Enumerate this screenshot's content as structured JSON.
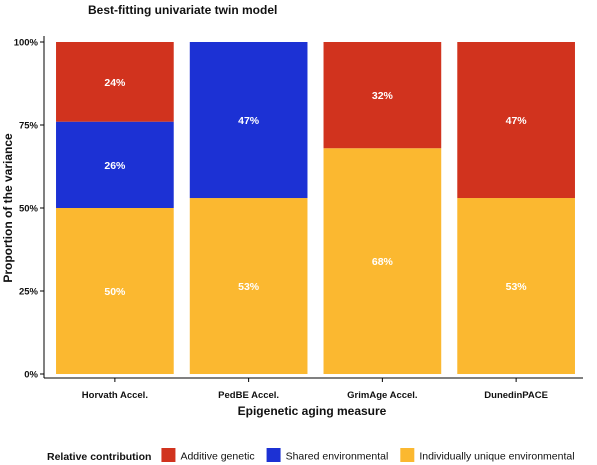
{
  "chart_data": {
    "type": "bar",
    "stacked": true,
    "title": "Best-fitting univariate twin model",
    "xlabel": "Epigenetic aging measure",
    "ylabel": "Proportion of the variance",
    "ylim": [
      0,
      1
    ],
    "yticks": [
      "0%",
      "25%",
      "50%",
      "75%",
      "100%"
    ],
    "categories": [
      "Horvath Accel.",
      "PedBE Accel.",
      "GrimAge Accel.",
      "DunedinPACE"
    ],
    "series": [
      {
        "name": "Individually unique environmental",
        "color": "#FBB830",
        "values": [
          0.5,
          0.53,
          0.68,
          0.53
        ],
        "labels": [
          "50%",
          "53%",
          "68%",
          "53%"
        ]
      },
      {
        "name": "Shared environmental",
        "color": "#1C31D4",
        "values": [
          0.26,
          0.47,
          0,
          0
        ],
        "labels": [
          "26%",
          "47%",
          "",
          ""
        ]
      },
      {
        "name": "Additive genetic",
        "color": "#D1331E",
        "values": [
          0.24,
          0,
          0.32,
          0.47
        ],
        "labels": [
          "24%",
          "",
          "32%",
          "47%"
        ]
      }
    ],
    "legend": {
      "title": "Relative contribution",
      "position": "bottom",
      "items": [
        {
          "name": "Additive genetic",
          "color": "#D1331E"
        },
        {
          "name": "Shared environmental",
          "color": "#1C31D4"
        },
        {
          "name": "Individually unique environmental",
          "color": "#FBB830"
        }
      ]
    },
    "grid": false
  }
}
